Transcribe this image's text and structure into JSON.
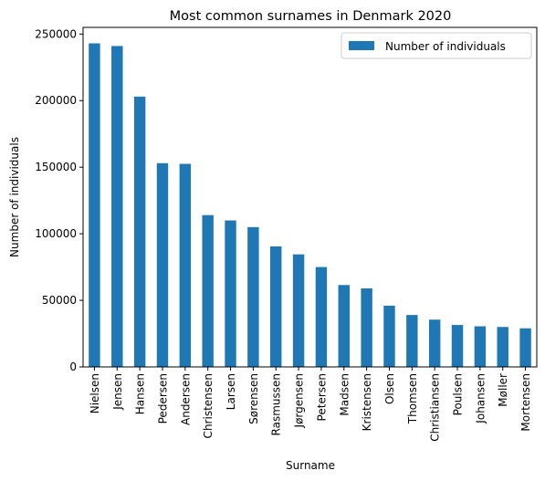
{
  "chart_data": {
    "type": "bar",
    "title": "Most common surnames in Denmark 2020",
    "xlabel": "Surname",
    "ylabel": "Number of individuals",
    "categories": [
      "Nielsen",
      "Jensen",
      "Hansen",
      "Pedersen",
      "Andersen",
      "Christensen",
      "Larsen",
      "Sørensen",
      "Rasmussen",
      "Jørgensen",
      "Petersen",
      "Madsen",
      "Kristensen",
      "Olsen",
      "Thomsen",
      "Christiansen",
      "Poulsen",
      "Johansen",
      "Møller",
      "Mortensen"
    ],
    "series": [
      {
        "name": "Number of individuals",
        "color": "#1f77b4",
        "values": [
          243000,
          241000,
          203000,
          153000,
          152500,
          114000,
          110000,
          105000,
          90500,
          84500,
          75000,
          61500,
          59000,
          46000,
          39000,
          35500,
          31500,
          30500,
          30000,
          29000
        ]
      }
    ],
    "ylim": [
      0,
      255000
    ],
    "yticks": [
      0,
      50000,
      100000,
      150000,
      200000,
      250000
    ],
    "ytick_labels": [
      "0",
      "50000",
      "100000",
      "150000",
      "200000",
      "250000"
    ],
    "grid": false,
    "legend_position": "top-right"
  }
}
